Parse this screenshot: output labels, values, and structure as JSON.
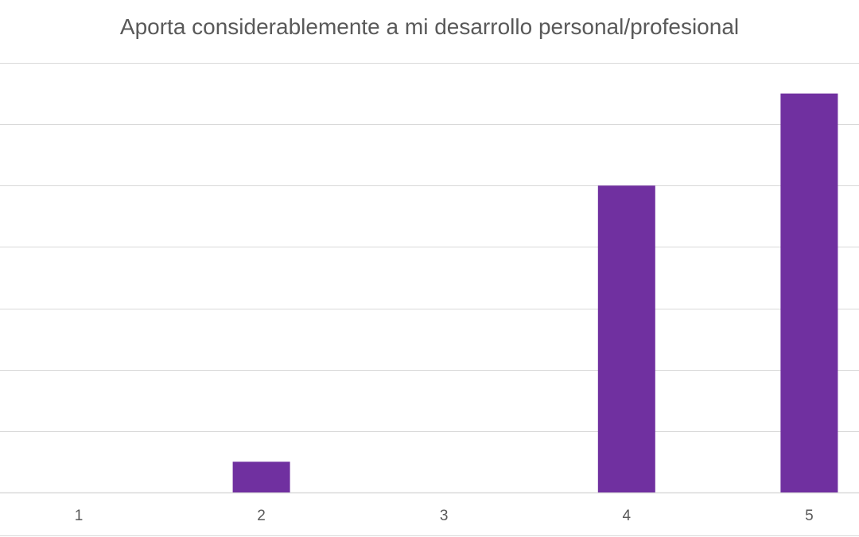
{
  "chart_data": {
    "type": "bar",
    "title": "Aporta considerablemente a mi desarrollo personal/profesional",
    "categories": [
      "1",
      "2",
      "3",
      "4",
      "5"
    ],
    "values": [
      0,
      0.5,
      0,
      5,
      6.5
    ],
    "xlabel": "",
    "ylabel": "",
    "ylim": [
      0,
      7
    ],
    "grid": true,
    "legend": "none",
    "bar_color": "#7030A0",
    "grid_color": "#D9D9D9"
  }
}
